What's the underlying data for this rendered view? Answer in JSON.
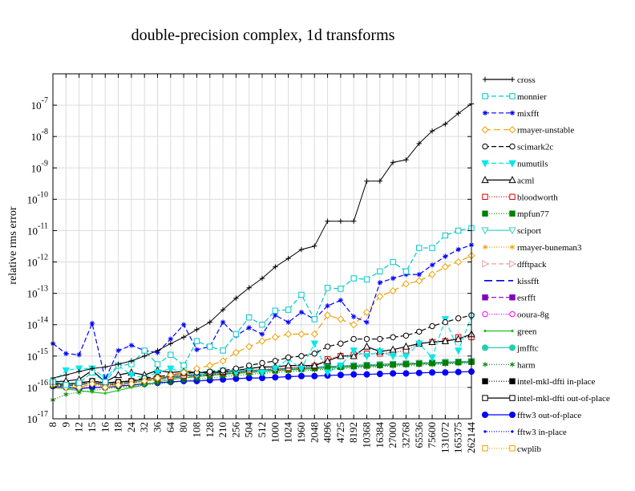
{
  "chart_data": {
    "type": "line",
    "title": "double-precision complex, 1d transforms",
    "xlabel": "",
    "ylabel": "relative rms error",
    "y_scale": "log",
    "ylim": [
      1e-17,
      1e-06
    ],
    "y_ticks": [
      {
        "value": 1e-17,
        "base": "10",
        "exp": "-17"
      },
      {
        "value": 1e-16,
        "base": "10",
        "exp": "-16"
      },
      {
        "value": 1e-15,
        "base": "10",
        "exp": "-15"
      },
      {
        "value": 1e-14,
        "base": "10",
        "exp": "-14"
      },
      {
        "value": 1e-13,
        "base": "10",
        "exp": "-13"
      },
      {
        "value": 1e-12,
        "base": "10",
        "exp": "-12"
      },
      {
        "value": 1e-11,
        "base": "10",
        "exp": "-11"
      },
      {
        "value": 1e-10,
        "base": "10",
        "exp": "-10"
      },
      {
        "value": 1e-09,
        "base": "10",
        "exp": "-9"
      },
      {
        "value": 1e-08,
        "base": "10",
        "exp": "-8"
      },
      {
        "value": 1e-07,
        "base": "10",
        "exp": "-7"
      }
    ],
    "categories": [
      "8",
      "9",
      "12",
      "15",
      "16",
      "18",
      "24",
      "32",
      "36",
      "64",
      "80",
      "108",
      "128",
      "210",
      "256",
      "504",
      "512",
      "1000",
      "1024",
      "1960",
      "2048",
      "4096",
      "4725",
      "8192",
      "10368",
      "16384",
      "27000",
      "32768",
      "65536",
      "75600",
      "131072",
      "165375",
      "262144"
    ],
    "grid": true,
    "legend_position": "right",
    "series": [
      {
        "name": "cross",
        "color": "#000000",
        "dash": "",
        "marker": "plus",
        "values": [
          2e-16,
          2.5e-16,
          3.2e-16,
          4e-16,
          4.5e-16,
          5.5e-16,
          7e-16,
          1e-15,
          1.5e-15,
          2.5e-15,
          4e-15,
          7e-15,
          1.2e-14,
          3e-14,
          7e-14,
          1.5e-13,
          3e-13,
          7e-13,
          1.3e-12,
          2.5e-12,
          3.2e-12,
          2e-11,
          2e-11,
          2e-11,
          3.8e-10,
          3.8e-10,
          1.5e-09,
          1.8e-09,
          6e-09,
          1.5e-08,
          2.5e-08,
          5.5e-08,
          1.1e-07
        ]
      },
      {
        "name": "monnier",
        "color": "#00c8c8",
        "dash": "6,3",
        "marker": "square-open",
        "values": [
          1.5e-16,
          1.2e-16,
          1.4e-16,
          3e-16,
          1.5e-16,
          5e-16,
          5.5e-16,
          1.5e-15,
          5.5e-16,
          1.1e-15,
          5e-16,
          3e-15,
          2e-15,
          1.5e-15,
          5e-15,
          1.7e-14,
          1e-14,
          2.8e-14,
          3e-14,
          9e-14,
          1.5e-14,
          1.5e-13,
          1.4e-13,
          3e-13,
          2.8e-13,
          5e-13,
          1e-12,
          5e-13,
          2.8e-12,
          2.8e-12,
          7e-12,
          1e-11,
          1.2e-11
        ]
      },
      {
        "name": "mixfft",
        "color": "#0000ff",
        "dash": "6,3",
        "marker": "star",
        "values": [
          2.5e-15,
          1.2e-15,
          1.1e-15,
          1.1e-14,
          1.8e-16,
          1.5e-15,
          2.2e-15,
          1.5e-15,
          1.3e-15,
          3.5e-15,
          1e-14,
          1.6e-15,
          2e-15,
          1.2e-14,
          4.5e-15,
          8e-15,
          5e-15,
          2e-14,
          1.2e-14,
          2.5e-14,
          1.5e-14,
          4e-14,
          6e-14,
          1.8e-14,
          1.2e-14,
          2.2e-13,
          3e-13,
          4e-13,
          4e-13,
          8e-13,
          1.5e-12,
          2.5e-12,
          3.5e-12
        ]
      },
      {
        "name": "rmayer-unstable",
        "color": "#f0a000",
        "dash": "8,4",
        "marker": "diamond-open",
        "values": [
          1.2e-16,
          1e-16,
          1e-16,
          1.3e-16,
          1e-16,
          1.2e-16,
          1.3e-16,
          1.6e-16,
          2e-16,
          2.5e-16,
          3e-16,
          4e-16,
          5e-16,
          7e-16,
          1.3e-15,
          2e-15,
          3e-15,
          4e-15,
          5e-15,
          5e-15,
          5e-15,
          2e-14,
          1.5e-14,
          1e-14,
          2.5e-14,
          8e-14,
          1.2e-13,
          2e-13,
          2.5e-13,
          4e-13,
          7e-13,
          1e-12,
          1.6e-12
        ]
      },
      {
        "name": "scimark2c",
        "color": "#000000",
        "dash": "6,3",
        "marker": "circle-open",
        "values": [
          1.3e-16,
          1.2e-16,
          1.4e-16,
          1.6e-16,
          1.4e-16,
          1.5e-16,
          1.6e-16,
          2e-16,
          2.2e-16,
          2.5e-16,
          2.8e-16,
          3e-16,
          3.2e-16,
          3.5e-16,
          4e-16,
          5e-16,
          6e-16,
          7e-16,
          9e-16,
          1e-15,
          1.2e-15,
          2e-15,
          2.5e-15,
          3.5e-15,
          3.5e-15,
          3.5e-15,
          4e-15,
          4.5e-15,
          6e-15,
          9e-15,
          1.2e-14,
          1.6e-14,
          2e-14
        ]
      },
      {
        "name": "numutils",
        "color": "#00e8e8",
        "dash": "6,3",
        "marker": "triangle-down",
        "values": [
          1.4e-16,
          3.5e-16,
          4e-16,
          4e-16,
          2e-16,
          5e-16,
          2.5e-16,
          2e-16,
          3e-16,
          4e-16,
          3e-16,
          2.5e-16,
          3e-16,
          3.5e-16,
          3e-16,
          4e-16,
          3e-16,
          4e-16,
          8e-16,
          4e-16,
          2.5e-15,
          3e-16,
          5e-16,
          1.5e-15,
          1e-15,
          1.4e-15,
          1e-15,
          1e-15,
          2.5e-15,
          9e-16,
          1.5e-14,
          1.5e-15,
          1.8e-14
        ]
      },
      {
        "name": "acml",
        "color": "#000000",
        "dash": "",
        "marker": "triangle-open",
        "values": [
          1.5e-16,
          1.6e-16,
          1.8e-16,
          3.5e-16,
          1.5e-16,
          2.5e-16,
          3e-16,
          2.5e-16,
          3.5e-16,
          3e-16,
          3.2e-16,
          3e-16,
          3e-16,
          3.2e-16,
          3.5e-16,
          4e-16,
          4.5e-16,
          4.5e-16,
          5e-16,
          5e-16,
          5e-16,
          7e-16,
          1e-15,
          1e-15,
          2e-15,
          1.4e-15,
          1.6e-15,
          2e-15,
          2.5e-15,
          2.8e-15,
          3e-15,
          3.5e-15,
          5e-15
        ]
      },
      {
        "name": "bloodworth",
        "color": "#e00000",
        "dash": "1,2",
        "marker": "square-open",
        "values": [
          1.3e-16,
          1.2e-16,
          1.3e-16,
          1.5e-16,
          1.2e-16,
          1.4e-16,
          1.6e-16,
          1.8e-16,
          2e-16,
          2.2e-16,
          2.4e-16,
          2.6e-16,
          2.8e-16,
          3e-16,
          3.2e-16,
          3.5e-16,
          3.8e-16,
          4e-16,
          4.2e-16,
          4.5e-16,
          4.8e-16,
          8e-16,
          1e-15,
          1.1e-15,
          1.2e-15,
          1.2e-15,
          1.3e-15,
          1.5e-15,
          2.5e-15,
          2.8e-15,
          3e-15,
          4e-15,
          4e-15
        ]
      },
      {
        "name": "mpfun77",
        "color": "#008000",
        "dash": "1,2",
        "marker": "square",
        "values": [
          1.2e-16,
          1.1e-16,
          1.2e-16,
          1.4e-16,
          1.1e-16,
          1.3e-16,
          1.4e-16,
          1.6e-16,
          1.8e-16,
          2e-16,
          2.2e-16,
          2.4e-16,
          2.5e-16,
          2.7e-16,
          2.9e-16,
          3.1e-16,
          3.3e-16,
          3.5e-16,
          3.7e-16,
          3.9e-16,
          4.1e-16,
          4.3e-16,
          4.5e-16,
          4.7e-16,
          4.9e-16,
          5.1e-16,
          5.3e-16,
          5.5e-16,
          5.7e-16,
          5.9e-16,
          6.1e-16,
          6.3e-16,
          6.5e-16
        ]
      },
      {
        "name": "sciport",
        "color": "#40d0c0",
        "dash": "",
        "marker": "triangle-down-open",
        "values": [
          1.3e-16,
          1.2e-16,
          1.3e-16,
          1.5e-16,
          1.3e-16,
          1.4e-16,
          1.5e-16,
          1.7e-16,
          1.9e-16,
          2.1e-16,
          2.3e-16,
          2.5e-16,
          2.7e-16,
          2.9e-16,
          3.1e-16,
          3.3e-16,
          3.5e-16,
          3.7e-16,
          3.9e-16,
          4.1e-16,
          4.3e-16,
          4.5e-16,
          4.7e-16,
          4.9e-16,
          5.1e-16,
          5.3e-16,
          5.5e-16,
          5.7e-16,
          5.9e-16,
          6.1e-16,
          6.3e-16,
          6.5e-16,
          6.7e-16
        ]
      },
      {
        "name": "rmayer-buneman3",
        "color": "#f0a000",
        "dash": "1,2",
        "marker": "asterisk",
        "values": [
          1.2e-16,
          1.1e-16,
          1.2e-16,
          1.4e-16,
          1.2e-16,
          1.3e-16,
          1.4e-16,
          1.6e-16,
          1.8e-16,
          2e-16,
          2.2e-16,
          2.4e-16,
          2.6e-16,
          2.8e-16,
          3e-16,
          3.2e-16,
          3.4e-16,
          3.6e-16,
          3.8e-16,
          4e-16,
          4.2e-16,
          4.4e-16,
          4.6e-16,
          4.8e-16,
          5e-16,
          5.2e-16,
          5.4e-16,
          5.6e-16,
          5.8e-16,
          6e-16,
          6.2e-16,
          6.4e-16,
          6.6e-16
        ]
      },
      {
        "name": "dfftpack",
        "color": "#e0a0a0",
        "dash": "6,3",
        "marker": "triangle-right-open",
        "values": [
          1.3e-16,
          1.2e-16,
          1.3e-16,
          1.5e-16,
          1.3e-16,
          1.4e-16,
          1.5e-16,
          1.7e-16,
          1.9e-16,
          2.1e-16,
          2.3e-16,
          2.5e-16,
          2.7e-16,
          2.9e-16,
          3.1e-16,
          3.3e-16,
          3.5e-16,
          3.7e-16,
          3.9e-16,
          4.1e-16,
          4.3e-16,
          4.5e-16,
          4.7e-16,
          4.9e-16,
          5.1e-16,
          5.3e-16,
          5.5e-16,
          5.7e-16,
          5.9e-16,
          6.1e-16,
          6.3e-16,
          6.5e-16,
          6.7e-16
        ]
      },
      {
        "name": "kissfft",
        "color": "#0000e0",
        "dash": "10,5",
        "marker": "none",
        "values": [
          1.3e-16,
          1.2e-16,
          1.3e-16,
          1.5e-16,
          1.3e-16,
          1.4e-16,
          1.5e-16,
          1.7e-16,
          1.9e-16,
          2.1e-16,
          2.3e-16,
          2.5e-16,
          2.7e-16,
          2.9e-16,
          3.1e-16,
          3.3e-16,
          3.5e-16,
          3.7e-16,
          3.9e-16,
          4.1e-16,
          4.3e-16,
          4.5e-16,
          4.7e-16,
          4.9e-16,
          5.1e-16,
          5.3e-16,
          5.5e-16,
          5.7e-16,
          5.9e-16,
          6.1e-16,
          6.3e-16,
          6.5e-16,
          6.7e-16
        ]
      },
      {
        "name": "esrfft",
        "color": "#8000c0",
        "dash": "6,3",
        "marker": "square",
        "values": [
          1.2e-16,
          1.1e-16,
          1.2e-16,
          1.4e-16,
          1.2e-16,
          1.3e-16,
          1.4e-16,
          1.6e-16,
          1.8e-16,
          2e-16,
          2.2e-16,
          2.4e-16,
          2.6e-16,
          2.8e-16,
          3e-16,
          3.2e-16,
          3.4e-16,
          3.6e-16,
          3.8e-16,
          4e-16,
          4.2e-16,
          4.4e-16,
          4.6e-16,
          4.8e-16,
          5e-16,
          5.2e-16,
          5.4e-16,
          5.6e-16,
          5.8e-16,
          6e-16,
          6.2e-16,
          6.4e-16,
          6.6e-16
        ]
      },
      {
        "name": "ooura-8g",
        "color": "#ff00ff",
        "dash": "1,2",
        "marker": "circle-open",
        "values": [
          1.2e-16,
          1.1e-16,
          1.2e-16,
          1.4e-16,
          1.2e-16,
          1.3e-16,
          1.4e-16,
          1.6e-16,
          1.8e-16,
          2e-16,
          2.2e-16,
          2.4e-16,
          2.6e-16,
          2.8e-16,
          3e-16,
          3.2e-16,
          3.4e-16,
          3.6e-16,
          3.8e-16,
          4e-16,
          4.2e-16,
          4.4e-16,
          4.6e-16,
          4.8e-16,
          5e-16,
          5.2e-16,
          5.4e-16,
          5.6e-16,
          5.8e-16,
          6e-16,
          6.2e-16,
          6.4e-16,
          6.6e-16
        ]
      },
      {
        "name": "green",
        "color": "#20c020",
        "dash": "",
        "marker": "dot",
        "values": [
          1e-16,
          9e-17,
          8e-17,
          7e-17,
          6.5e-17,
          8e-17,
          1e-16,
          1.2e-16,
          1.5e-16,
          1.8e-16,
          2e-16,
          2.2e-16,
          2.4e-16,
          2.6e-16,
          2.8e-16,
          3e-16,
          3.2e-16,
          3.4e-16,
          3.6e-16,
          3.8e-16,
          4e-16,
          4.2e-16,
          4.4e-16,
          4.6e-16,
          4.8e-16,
          5e-16,
          5.2e-16,
          5.4e-16,
          5.6e-16,
          5.8e-16,
          6e-16,
          6.2e-16,
          6.4e-16
        ]
      },
      {
        "name": "jmfftc",
        "color": "#20d0b0",
        "dash": "",
        "marker": "circle",
        "values": [
          1.3e-16,
          1.2e-16,
          1.3e-16,
          1.5e-16,
          1.3e-16,
          1.4e-16,
          1.5e-16,
          1.7e-16,
          1.9e-16,
          2.1e-16,
          2.3e-16,
          2.5e-16,
          2.7e-16,
          2.9e-16,
          3.1e-16,
          3.3e-16,
          3.5e-16,
          3.7e-16,
          3.9e-16,
          4.1e-16,
          4.3e-16,
          4.5e-16,
          4.7e-16,
          4.9e-16,
          5.1e-16,
          5.3e-16,
          5.5e-16,
          5.7e-16,
          5.9e-16,
          6.1e-16,
          6.3e-16,
          6.5e-16,
          6.7e-16
        ]
      },
      {
        "name": "harm",
        "color": "#008000",
        "dash": "1,2",
        "marker": "asterisk",
        "values": [
          4e-17,
          6e-17,
          7e-17,
          8e-17,
          9e-17,
          1e-16,
          1.1e-16,
          1.2e-16,
          1.3e-16,
          1.4e-16,
          1.6e-16,
          1.8e-16,
          2e-16,
          2.2e-16,
          2.4e-16,
          2.6e-16,
          2.8e-16,
          3e-16,
          3.2e-16,
          3.4e-16,
          3.6e-16,
          3.8e-16,
          4e-16,
          4.2e-16,
          4.4e-16,
          4.6e-16,
          4.8e-16,
          5e-16,
          5.2e-16,
          5.4e-16,
          5.6e-16,
          5.8e-16,
          6e-16
        ]
      },
      {
        "name": "intel-mkl-dfti in-place",
        "color": "#000000",
        "dash": "1,2",
        "marker": "square",
        "values": [
          1.3e-16,
          1.2e-16,
          1.3e-16,
          1.5e-16,
          1.3e-16,
          1.4e-16,
          1.5e-16,
          1.7e-16,
          1.9e-16,
          2.1e-16,
          2.3e-16,
          2.5e-16,
          2.7e-16,
          2.9e-16,
          3.1e-16,
          3.3e-16,
          3.5e-16,
          3.7e-16,
          3.9e-16,
          4.1e-16,
          4.3e-16,
          4.5e-16,
          4.7e-16,
          4.9e-16,
          5.1e-16,
          5.3e-16,
          5.5e-16,
          5.7e-16,
          5.9e-16,
          6.1e-16,
          6.3e-16,
          6.5e-16,
          6.7e-16
        ]
      },
      {
        "name": "intel-mkl-dfti out-of-place",
        "color": "#000000",
        "dash": "",
        "marker": "square-open",
        "values": [
          1.4e-16,
          1.3e-16,
          1.4e-16,
          1.6e-16,
          1.4e-16,
          1.5e-16,
          1.6e-16,
          1.8e-16,
          2e-16,
          2.2e-16,
          2.4e-16,
          2.6e-16,
          2.8e-16,
          3e-16,
          3.2e-16,
          3.4e-16,
          3.6e-16,
          3.8e-16,
          4e-16,
          4.2e-16,
          4.4e-16,
          4.6e-16,
          4.8e-16,
          5e-16,
          5.2e-16,
          5.4e-16,
          5.6e-16,
          5.8e-16,
          6e-16,
          6.2e-16,
          6.4e-16,
          6.6e-16,
          6.8e-16
        ]
      },
      {
        "name": "fftw3 out-of-place",
        "color": "#0000ff",
        "dash": "",
        "marker": "circle",
        "values": [
          1.1e-16,
          1e-16,
          9e-17,
          1e-16,
          1e-16,
          1.1e-16,
          1.2e-16,
          1.3e-16,
          1.4e-16,
          1.5e-16,
          1.6e-16,
          1.6e-16,
          1.7e-16,
          1.8e-16,
          1.9e-16,
          2e-16,
          2e-16,
          2.1e-16,
          2.2e-16,
          2.3e-16,
          2.3e-16,
          2.4e-16,
          2.5e-16,
          2.6e-16,
          2.6e-16,
          2.7e-16,
          2.8e-16,
          2.8e-16,
          2.9e-16,
          3e-16,
          3e-16,
          3.1e-16,
          3.2e-16
        ]
      },
      {
        "name": "fftw3 in-place",
        "color": "#0000ff",
        "dash": "1,2",
        "marker": "dot",
        "values": [
          1.1e-16,
          1e-16,
          9.5e-17,
          1e-16,
          1e-16,
          1.1e-16,
          1.2e-16,
          1.3e-16,
          1.4e-16,
          1.5e-16,
          1.6e-16,
          1.6e-16,
          1.7e-16,
          1.8e-16,
          1.9e-16,
          2e-16,
          2e-16,
          2.1e-16,
          2.2e-16,
          2.3e-16,
          2.3e-16,
          2.4e-16,
          2.5e-16,
          2.6e-16,
          2.6e-16,
          2.7e-16,
          2.8e-16,
          2.8e-16,
          2.9e-16,
          3e-16,
          3e-16,
          3.1e-16,
          3.2e-16
        ]
      },
      {
        "name": "cwplib",
        "color": "#f0a000",
        "dash": "1,2",
        "marker": "square-open",
        "values": [
          1.3e-16,
          1.1e-16,
          1e-16,
          1.2e-16,
          1.1e-16,
          1.3e-16,
          1.4e-16,
          1.6e-16,
          1.8e-16,
          2e-16,
          2.2e-16,
          2.4e-16,
          2.6e-16,
          2.8e-16,
          3e-16,
          3.2e-16,
          3.4e-16,
          3.6e-16,
          3.8e-16,
          4e-16,
          4.2e-16,
          4.4e-16,
          4.6e-16,
          4.8e-16,
          5e-16,
          5.2e-16,
          5.4e-16,
          5.6e-16,
          5.8e-16,
          6e-16,
          6.2e-16,
          6.4e-16,
          6.6e-16
        ]
      }
    ]
  }
}
